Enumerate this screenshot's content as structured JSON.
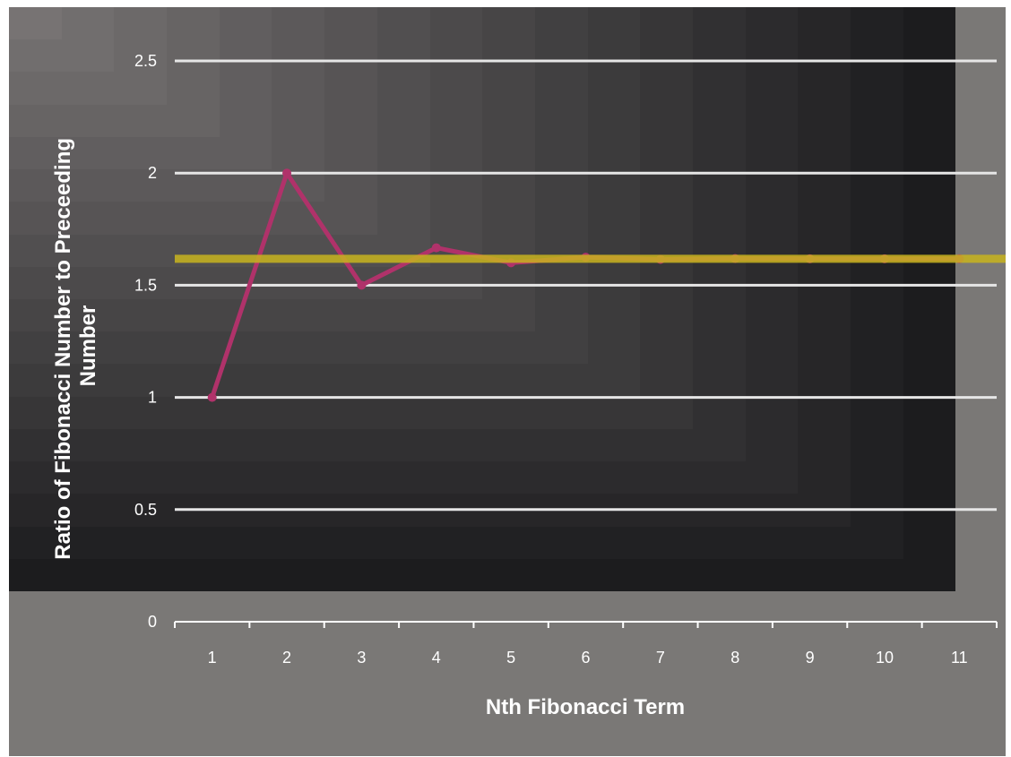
{
  "chart_data": {
    "type": "line",
    "title": "",
    "xlabel": "Nth Fibonacci Term",
    "ylabel_lines": [
      "Ratio of Fibonacci Number to Preceeding",
      "Number"
    ],
    "categories": [
      "1",
      "2",
      "3",
      "4",
      "5",
      "6",
      "7",
      "8",
      "9",
      "10",
      "11"
    ],
    "ylim": [
      0,
      2.5
    ],
    "yticks": [
      "0",
      "0.5",
      "1",
      "1.5",
      "2",
      "2.5"
    ],
    "grid": true,
    "legend": "none",
    "series": [
      {
        "values": [
          1,
          2,
          1.5,
          1.667,
          1.6,
          1.625,
          1.615,
          1.619,
          1.618,
          1.618,
          1.618
        ],
        "color": "#b0326a"
      }
    ],
    "reference_line": {
      "value": 1.618,
      "color": "#c8b41e"
    }
  }
}
